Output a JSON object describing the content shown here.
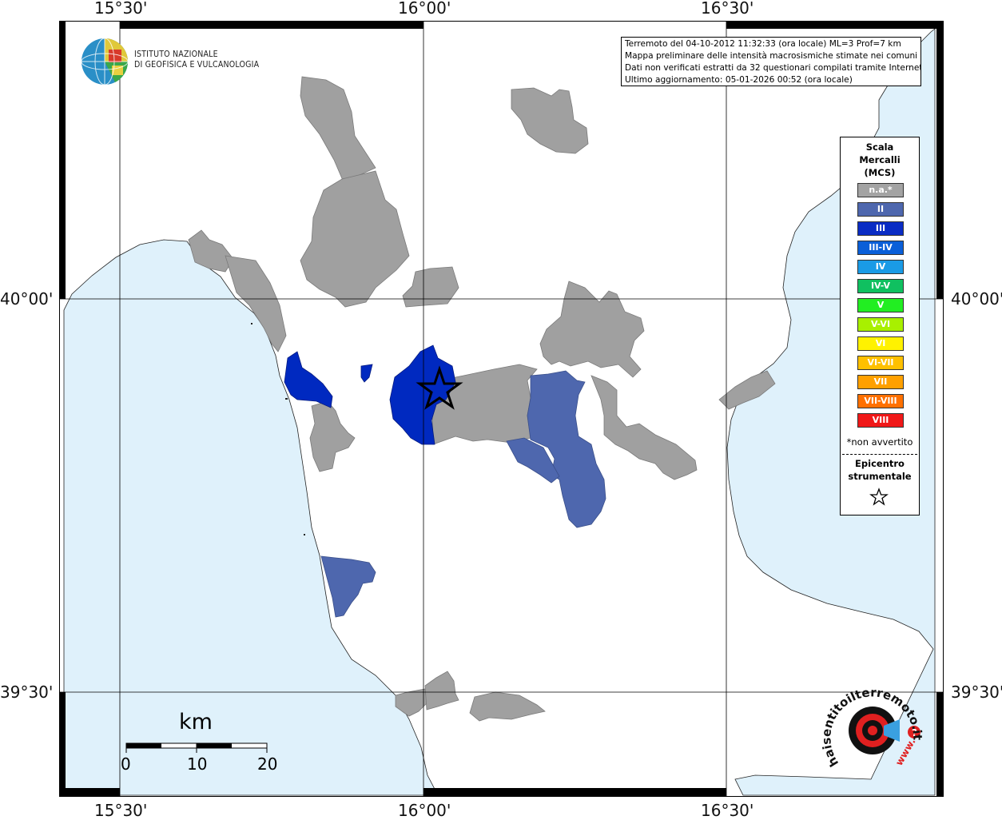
{
  "map": {
    "lon_ticks": [
      "15°30'",
      "16°00'",
      "16°30'"
    ],
    "lat_ticks": [
      "40°00'",
      "39°30'"
    ],
    "colors": {
      "sea": "#dff1fb",
      "land": "#ffffff",
      "not_felt": "#a0a0a0",
      "intensity_II": "#4e67ae",
      "intensity_III": "#0029c0",
      "grid": "#000000"
    }
  },
  "logo": {
    "line1": "ISTITUTO NAZIONALE",
    "line2": "DI GEOFISICA E VULCANOLOGIA"
  },
  "info": {
    "line1": "Terremoto del 04-10-2012 11:32:33 (ora locale) ML=3 Prof=7 km",
    "line2": "Mappa preliminare delle intensità macrosismiche stimate nei comuni",
    "line3": "Dati non verificati estratti da 32 questionari compilati tramite Internet.",
    "line4": "Ultimo aggiornamento: 05-01-2026 00:52 (ora locale)"
  },
  "legend": {
    "title": [
      "Scala",
      "Mercalli",
      "(MCS)"
    ],
    "items": [
      {
        "label": "n.a.*",
        "color": "#a3a3a3"
      },
      {
        "label": "II",
        "color": "#4e67ae"
      },
      {
        "label": "III",
        "color": "#0a2cc4"
      },
      {
        "label": "III-IV",
        "color": "#0a5fd8"
      },
      {
        "label": "IV",
        "color": "#1a9be6"
      },
      {
        "label": "IV-V",
        "color": "#10c060"
      },
      {
        "label": "V",
        "color": "#22ee22"
      },
      {
        "label": "V-VI",
        "color": "#a8f000"
      },
      {
        "label": "VI",
        "color": "#fff200"
      },
      {
        "label": "VI-VII",
        "color": "#ffc000"
      },
      {
        "label": "VII",
        "color": "#ffa000"
      },
      {
        "label": "VII-VIII",
        "color": "#ff7000"
      },
      {
        "label": "VIII",
        "color": "#f01818"
      }
    ],
    "note": "*non avvertito",
    "epicenter": [
      "Epicentro",
      "strumentale"
    ]
  },
  "scale": {
    "unit": "km",
    "labels": [
      "0",
      "10",
      "20"
    ]
  },
  "brand": {
    "text": "haisentitoilterremoto.it",
    "prefix": "www."
  }
}
